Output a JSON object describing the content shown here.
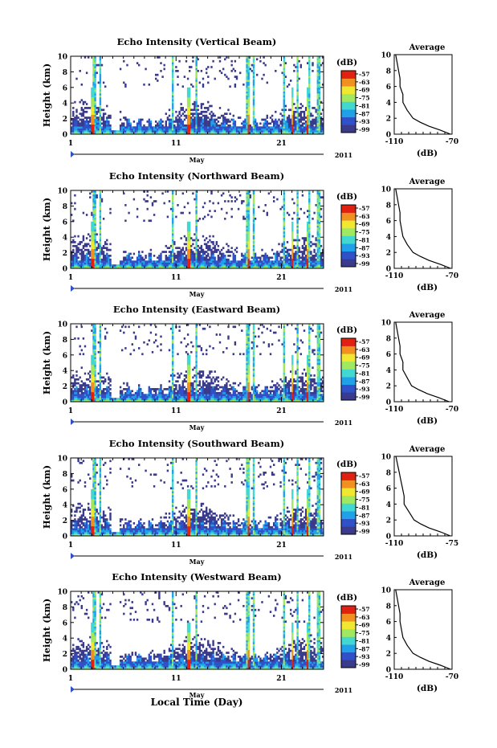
{
  "figure": {
    "xlabel": "Local Time (Day)",
    "month_label": "May",
    "year_label": "2011",
    "x_ticks": [
      "1",
      "11",
      "21"
    ]
  },
  "chart_data": [
    {
      "type": "heatmap",
      "title": "Echo Intensity (Vertical Beam)",
      "ylabel": "Height (km)",
      "y_ticks": [
        "0",
        "2",
        "4",
        "6",
        "8",
        "10"
      ],
      "ylim": [
        0,
        10
      ],
      "xlim": [
        1,
        25
      ],
      "colorbar": {
        "label": "(dB)",
        "ticks": [
          "-57",
          "-63",
          "-69",
          "-75",
          "-81",
          "-87",
          "-93",
          "-99"
        ],
        "range": [
          -99,
          -57
        ]
      },
      "profile": {
        "title": "Average",
        "xlabel": "(dB)",
        "x_ticks": [
          "-110",
          "-70"
        ],
        "xlim": [
          -110,
          -70
        ],
        "ylim": [
          0,
          10
        ],
        "heights": [
          0,
          0.5,
          1,
          1.5,
          2,
          3,
          4,
          5,
          6,
          7,
          8,
          9,
          10
        ],
        "values": [
          -71,
          -78,
          -86,
          -92,
          -97,
          -101,
          -104,
          -104,
          -106,
          -106,
          -107,
          -108,
          -109
        ]
      }
    },
    {
      "type": "heatmap",
      "title": "Echo Intensity (Northward Beam)",
      "ylabel": "Height (km)",
      "y_ticks": [
        "0",
        "2",
        "4",
        "6",
        "8",
        "10"
      ],
      "ylim": [
        0,
        10
      ],
      "xlim": [
        1,
        25
      ],
      "colorbar": {
        "label": "(dB)",
        "ticks": [
          "-57",
          "-63",
          "-69",
          "-75",
          "-81",
          "-87",
          "-93",
          "-99"
        ],
        "range": [
          -99,
          -57
        ]
      },
      "profile": {
        "title": "Average",
        "xlabel": "(dB)",
        "x_ticks": [
          "-110",
          "-70"
        ],
        "xlim": [
          -110,
          -70
        ],
        "ylim": [
          0,
          10
        ],
        "heights": [
          0,
          0.5,
          1,
          1.5,
          2,
          3,
          4,
          5,
          6,
          7,
          8,
          9,
          10
        ],
        "values": [
          -71,
          -78,
          -86,
          -92,
          -97,
          -101,
          -104,
          -105,
          -106,
          -106,
          -107,
          -108,
          -109
        ]
      }
    },
    {
      "type": "heatmap",
      "title": "Echo Intensity (Eastward Beam)",
      "ylabel": "Height (km)",
      "y_ticks": [
        "0",
        "2",
        "4",
        "6",
        "8",
        "10"
      ],
      "ylim": [
        0,
        10
      ],
      "xlim": [
        1,
        25
      ],
      "colorbar": {
        "label": "(dB)",
        "ticks": [
          "-57",
          "-63",
          "-69",
          "-75",
          "-81",
          "-87",
          "-93",
          "-99"
        ],
        "range": [
          -99,
          -57
        ]
      },
      "profile": {
        "title": "Average",
        "xlabel": "(dB)",
        "x_ticks": [
          "-110",
          "-70"
        ],
        "xlim": [
          -110,
          -70
        ],
        "ylim": [
          0,
          10
        ],
        "heights": [
          0,
          0.5,
          1,
          1.5,
          2,
          3,
          4,
          5,
          6,
          7,
          8,
          9,
          10
        ],
        "values": [
          -72,
          -79,
          -87,
          -93,
          -98,
          -101,
          -104,
          -104,
          -106,
          -106,
          -107,
          -108,
          -109
        ]
      }
    },
    {
      "type": "heatmap",
      "title": "Echo Intensity (Southward Beam)",
      "ylabel": "Height (km)",
      "y_ticks": [
        "0",
        "2",
        "4",
        "6",
        "8",
        "10"
      ],
      "ylim": [
        0,
        10
      ],
      "xlim": [
        1,
        25
      ],
      "colorbar": {
        "label": "(dB)",
        "ticks": [
          "-57",
          "-63",
          "-69",
          "-75",
          "-81",
          "-87",
          "-93",
          "-99"
        ],
        "range": [
          -99,
          -57
        ]
      },
      "profile": {
        "title": "Average",
        "xlabel": "(dB)",
        "x_ticks": [
          "-110",
          "-75"
        ],
        "xlim": [
          -110,
          -75
        ],
        "ylim": [
          0,
          10
        ],
        "heights": [
          0,
          0.5,
          1,
          1.5,
          2,
          3,
          4,
          5,
          6,
          7,
          8,
          9,
          10
        ],
        "values": [
          -76,
          -82,
          -89,
          -94,
          -98,
          -101,
          -104,
          -104,
          -105,
          -106,
          -107,
          -108,
          -109
        ]
      }
    },
    {
      "type": "heatmap",
      "title": "Echo Intensity (Westward Beam)",
      "ylabel": "Height (km)",
      "y_ticks": [
        "0",
        "2",
        "4",
        "6",
        "8",
        "10"
      ],
      "ylim": [
        0,
        10
      ],
      "xlim": [
        1,
        25
      ],
      "colorbar": {
        "label": "(dB)",
        "ticks": [
          "-57",
          "-63",
          "-69",
          "-75",
          "-81",
          "-87",
          "-93",
          "-99"
        ],
        "range": [
          -99,
          -57
        ]
      },
      "profile": {
        "title": "Average",
        "xlabel": "(dB)",
        "x_ticks": [
          "-110",
          "-70"
        ],
        "xlim": [
          -110,
          -70
        ],
        "ylim": [
          0,
          10
        ],
        "heights": [
          0,
          0.5,
          1,
          1.5,
          2,
          3,
          4,
          5,
          6,
          7,
          8,
          9,
          10
        ],
        "values": [
          -71,
          -78,
          -86,
          -92,
          -97,
          -101,
          -104,
          -105,
          -106,
          -106,
          -107,
          -108,
          -109
        ]
      }
    }
  ],
  "colors": {
    "scale": [
      "#3a3a8c",
      "#3050c8",
      "#20a0e8",
      "#40d8d0",
      "#a0e860",
      "#f0e830",
      "#f09020",
      "#e02010"
    ]
  }
}
